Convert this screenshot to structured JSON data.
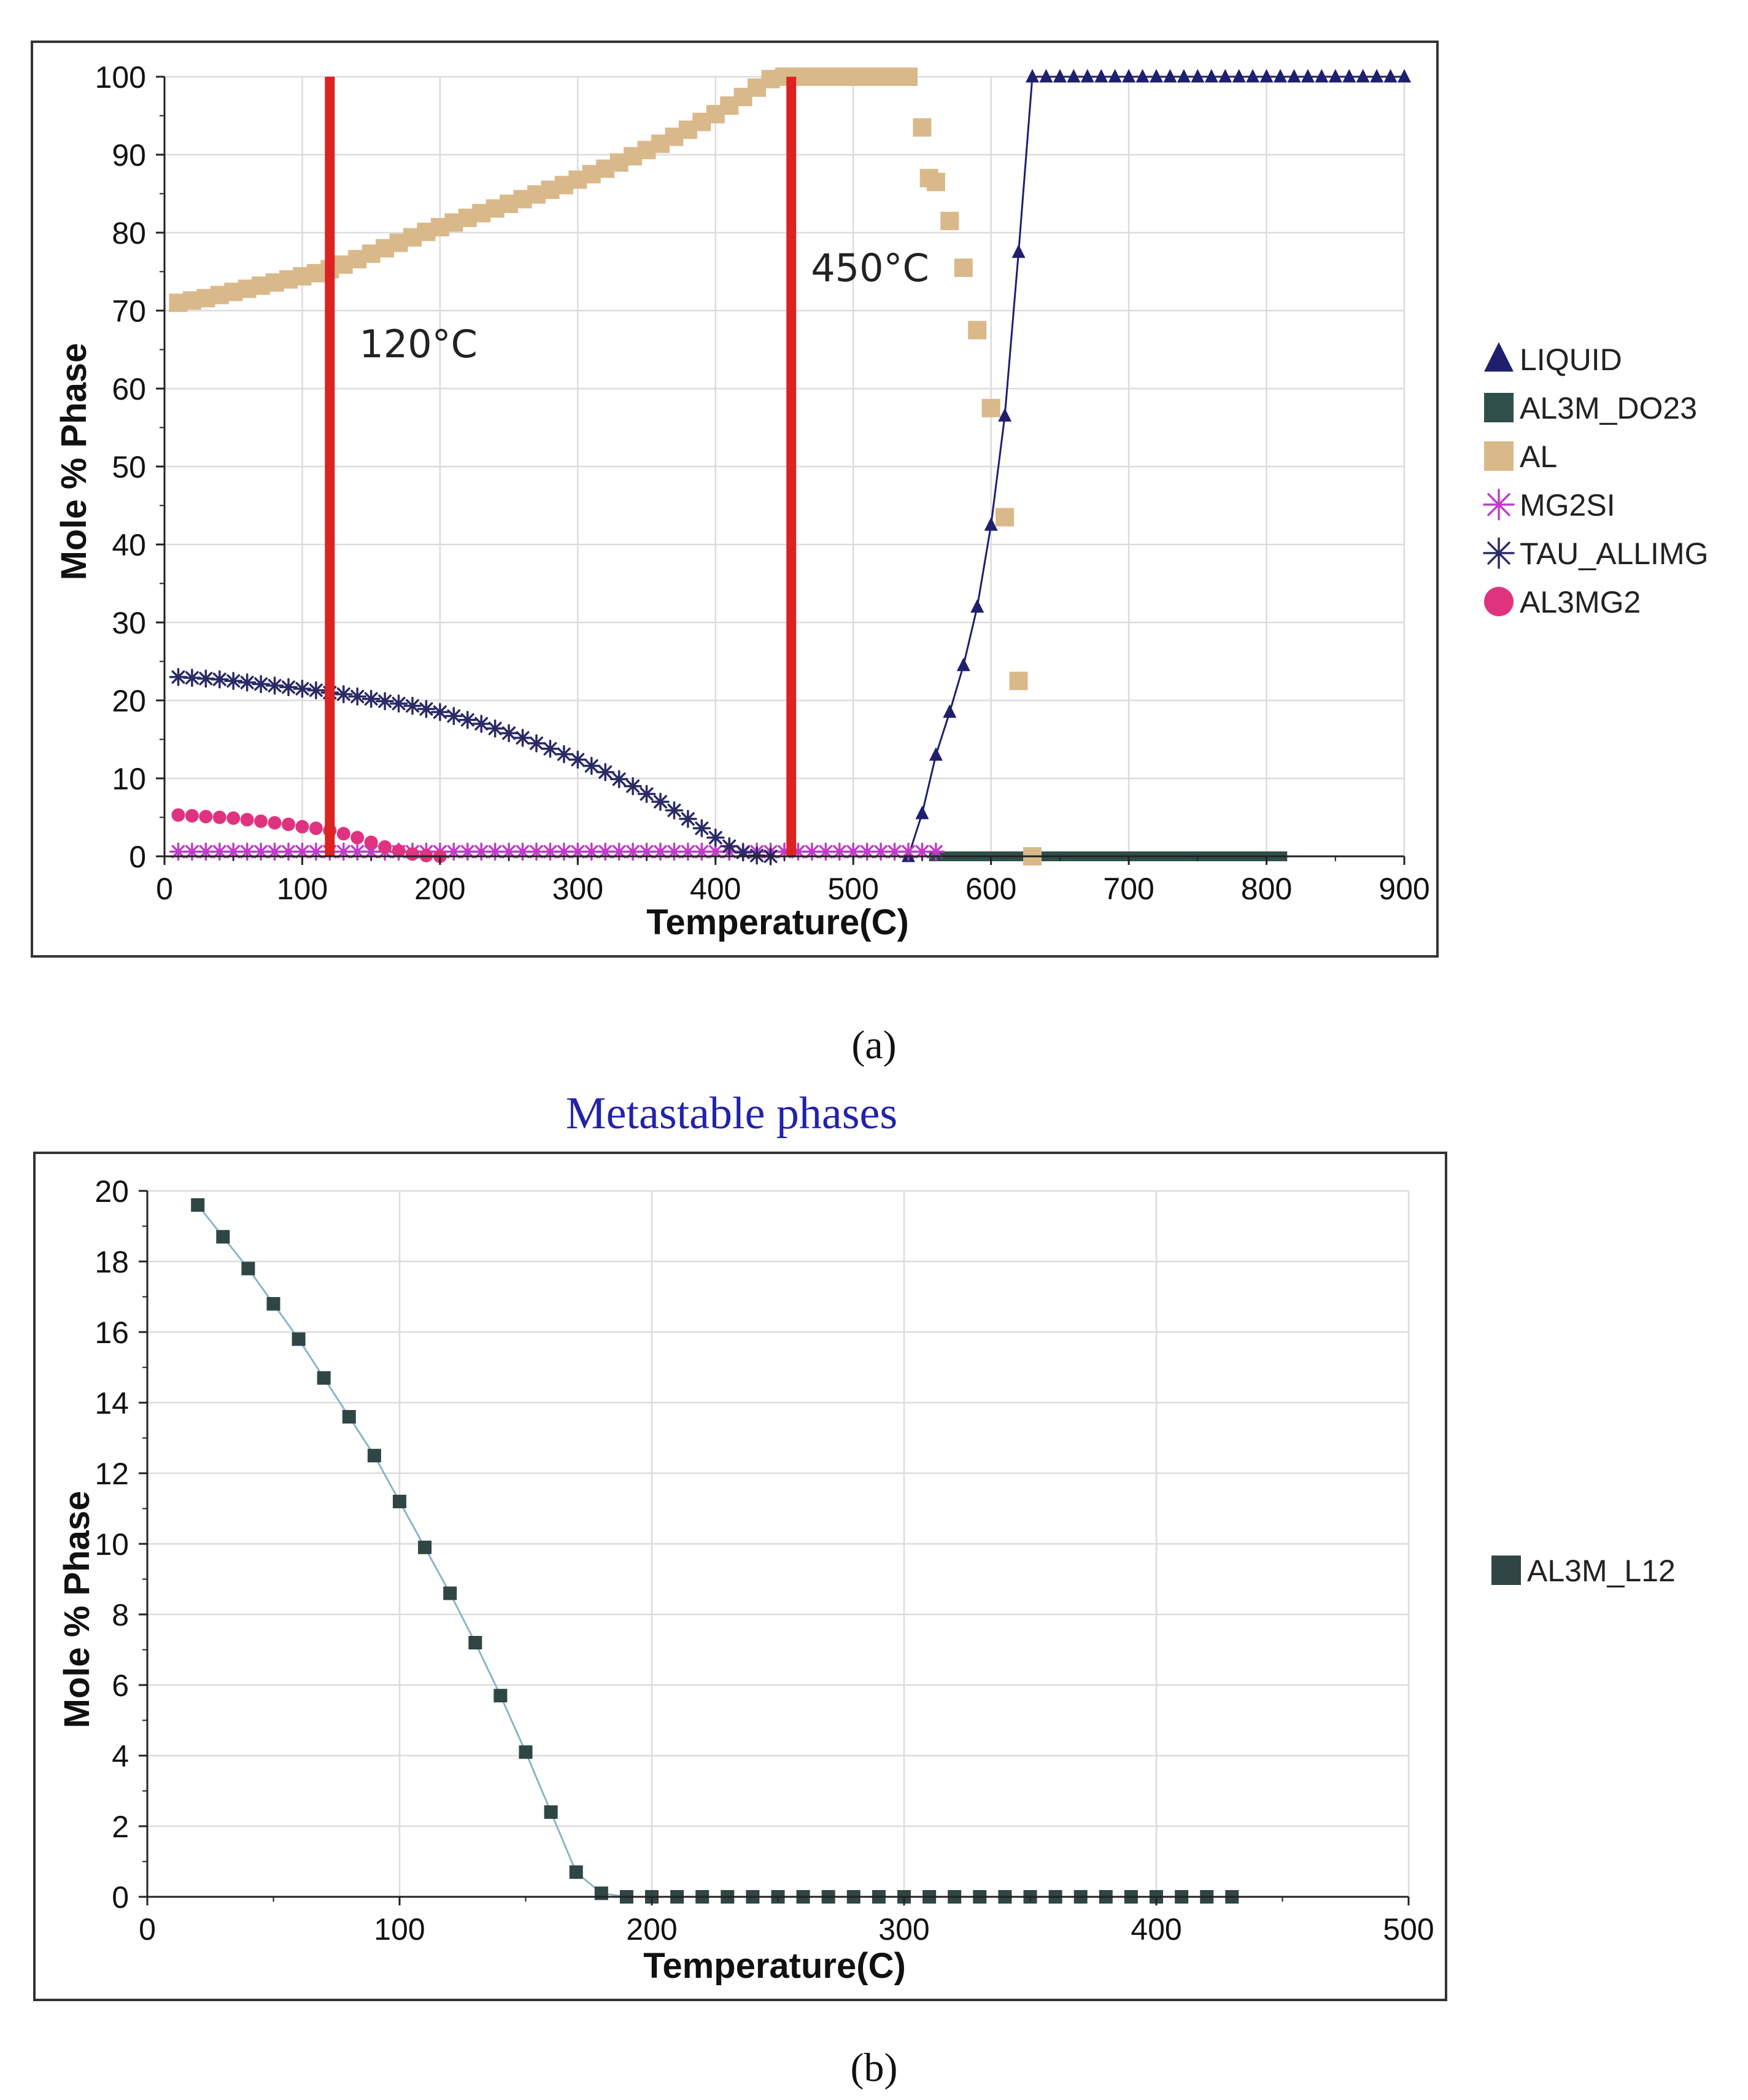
{
  "colors": {
    "liquid": "#1f1f6e",
    "al3m_do23": "#2f4f4a",
    "al": "#d9b98a",
    "mg2si": "#c03cc8",
    "tau": "#2a2a66",
    "al3mg2": "#e0337f",
    "marker": "#dd2222",
    "l12": "#2f4644",
    "l12_line": "#8ab6c8",
    "title": "#2222aa",
    "grid": "#dcdcdc"
  },
  "captions": {
    "a": "(a)",
    "b": "(b)"
  },
  "chart_data": [
    {
      "type": "line",
      "title": "",
      "xlabel": "Temperature(C)",
      "ylabel": "Mole % Phase",
      "xlim": [
        0,
        900
      ],
      "ylim": [
        0,
        100
      ],
      "xticks": [
        0,
        100,
        200,
        300,
        400,
        500,
        600,
        700,
        800,
        900
      ],
      "yticks": [
        0,
        10,
        20,
        30,
        40,
        50,
        60,
        70,
        80,
        90,
        100
      ],
      "grid": true,
      "legend_position": "right",
      "annotations": [
        {
          "label": "120°C",
          "x": 120
        },
        {
          "label": "450°C",
          "x": 455
        }
      ],
      "series": [
        {
          "name": "LIQUID",
          "marker": "triangle",
          "color_key": "liquid",
          "line": true,
          "x": [
            540,
            550,
            560,
            570,
            580,
            590,
            600,
            610,
            620,
            630,
            640,
            650,
            660,
            670,
            680,
            690,
            700,
            710,
            720,
            730,
            740,
            750,
            760,
            770,
            780,
            790,
            800,
            810,
            820,
            830,
            840,
            850,
            860,
            870,
            880,
            890,
            900
          ],
          "y": [
            0,
            5.5,
            13,
            18.5,
            24.5,
            32,
            42.5,
            56.5,
            77.5,
            100,
            100,
            100,
            100,
            100,
            100,
            100,
            100,
            100,
            100,
            100,
            100,
            100,
            100,
            100,
            100,
            100,
            100,
            100,
            100,
            100,
            100,
            100,
            100,
            100,
            100,
            100,
            100
          ]
        },
        {
          "name": "AL3M_DO23",
          "marker": "square",
          "color_key": "al3m_do23",
          "line": true,
          "x": [
            555,
            815
          ],
          "y": [
            0,
            0
          ]
        },
        {
          "name": "AL",
          "marker": "square",
          "color_key": "al",
          "line": false,
          "x": [
            10,
            20,
            30,
            40,
            50,
            60,
            70,
            80,
            90,
            100,
            110,
            120,
            130,
            140,
            150,
            160,
            170,
            180,
            190,
            200,
            210,
            220,
            230,
            240,
            250,
            260,
            270,
            280,
            290,
            300,
            310,
            320,
            330,
            340,
            350,
            360,
            370,
            380,
            390,
            400,
            410,
            420,
            430,
            440,
            450,
            460,
            470,
            480,
            490,
            500,
            510,
            520,
            530,
            540,
            550,
            555,
            560,
            570,
            580,
            590,
            600,
            610,
            620,
            630
          ],
          "y": [
            71,
            71.3,
            71.6,
            72,
            72.4,
            72.8,
            73.2,
            73.6,
            74,
            74.4,
            74.8,
            75.3,
            75.9,
            76.6,
            77.3,
            78,
            78.7,
            79.4,
            80.1,
            80.7,
            81.3,
            81.9,
            82.5,
            83.1,
            83.7,
            84.3,
            84.9,
            85.5,
            86.1,
            86.8,
            87.5,
            88.2,
            89,
            89.8,
            90.6,
            91.4,
            92.3,
            93.2,
            94.2,
            95.2,
            96.3,
            97.4,
            98.6,
            99.7,
            100,
            100,
            100,
            100,
            100,
            100,
            100,
            100,
            100,
            100,
            93.5,
            87,
            86.5,
            81.5,
            75.5,
            67.5,
            57.5,
            43.5,
            22.5,
            0
          ]
        },
        {
          "name": "MG2SI",
          "marker": "asterisk",
          "color_key": "mg2si",
          "line": false,
          "x": [
            10,
            20,
            30,
            40,
            50,
            60,
            70,
            80,
            90,
            100,
            110,
            120,
            130,
            140,
            150,
            160,
            170,
            180,
            190,
            200,
            210,
            220,
            230,
            240,
            250,
            260,
            270,
            280,
            290,
            300,
            310,
            320,
            330,
            340,
            350,
            360,
            370,
            380,
            390,
            400,
            410,
            420,
            430,
            440,
            450,
            460,
            470,
            480,
            490,
            500,
            510,
            520,
            530,
            540,
            550,
            560
          ],
          "y": [
            0.6,
            0.6,
            0.6,
            0.6,
            0.6,
            0.6,
            0.6,
            0.6,
            0.6,
            0.6,
            0.6,
            0.6,
            0.6,
            0.6,
            0.6,
            0.6,
            0.6,
            0.6,
            0.6,
            0.6,
            0.6,
            0.6,
            0.6,
            0.6,
            0.6,
            0.6,
            0.6,
            0.6,
            0.6,
            0.6,
            0.6,
            0.6,
            0.6,
            0.6,
            0.6,
            0.6,
            0.6,
            0.6,
            0.6,
            0.6,
            0.6,
            0.6,
            0.6,
            0.6,
            0.6,
            0.6,
            0.6,
            0.6,
            0.6,
            0.6,
            0.6,
            0.6,
            0.6,
            0.6,
            0.6,
            0.6
          ]
        },
        {
          "name": "TAU_ALLIMG",
          "marker": "asterisk",
          "color_key": "tau",
          "line": false,
          "x": [
            10,
            20,
            30,
            40,
            50,
            60,
            70,
            80,
            90,
            100,
            110,
            120,
            130,
            140,
            150,
            160,
            170,
            180,
            190,
            200,
            210,
            220,
            230,
            240,
            250,
            260,
            270,
            280,
            290,
            300,
            310,
            320,
            330,
            340,
            350,
            360,
            370,
            380,
            390,
            400,
            410,
            420,
            430,
            440
          ],
          "y": [
            23,
            22.9,
            22.8,
            22.7,
            22.5,
            22.3,
            22.1,
            21.9,
            21.7,
            21.5,
            21.3,
            21,
            20.8,
            20.5,
            20.2,
            19.9,
            19.6,
            19.3,
            18.9,
            18.5,
            18,
            17.5,
            17,
            16.4,
            15.8,
            15.2,
            14.5,
            13.8,
            13.1,
            12.4,
            11.6,
            10.8,
            9.9,
            9,
            8,
            7,
            5.9,
            4.8,
            3.6,
            2.4,
            1.3,
            0.5,
            0.1,
            0
          ]
        },
        {
          "name": "AL3MG2",
          "marker": "circle",
          "color_key": "al3mg2",
          "line": false,
          "x": [
            10,
            20,
            30,
            40,
            50,
            60,
            70,
            80,
            90,
            100,
            110,
            120,
            130,
            140,
            150,
            160,
            170,
            180,
            190,
            200
          ],
          "y": [
            5.3,
            5.2,
            5.1,
            5,
            4.9,
            4.7,
            4.5,
            4.3,
            4.1,
            3.8,
            3.6,
            3.3,
            2.9,
            2.4,
            1.8,
            1.2,
            0.7,
            0.3,
            0.1,
            0
          ]
        }
      ]
    },
    {
      "type": "line",
      "title": "Metastable phases",
      "xlabel": "Temperature(C)",
      "ylabel": "Mole % Phase",
      "xlim": [
        0,
        500
      ],
      "ylim": [
        0,
        20
      ],
      "xticks": [
        0,
        100,
        200,
        300,
        400,
        500
      ],
      "yticks": [
        0,
        2,
        4,
        6,
        8,
        10,
        12,
        14,
        16,
        18,
        20
      ],
      "grid": true,
      "legend_position": "right",
      "series": [
        {
          "name": "AL3M_L12",
          "marker": "square",
          "color_key": "l12",
          "line": true,
          "x": [
            20,
            30,
            40,
            50,
            60,
            70,
            80,
            90,
            100,
            110,
            120,
            130,
            140,
            150,
            160,
            170,
            180,
            190,
            200,
            210,
            220,
            230,
            240,
            250,
            260,
            270,
            280,
            290,
            300,
            310,
            320,
            330,
            340,
            350,
            360,
            370,
            380,
            390,
            400,
            410,
            420,
            430
          ],
          "y": [
            19.6,
            18.7,
            17.8,
            16.8,
            15.8,
            14.7,
            13.6,
            12.5,
            11.2,
            9.9,
            8.6,
            7.2,
            5.7,
            4.1,
            2.4,
            0.7,
            0.1,
            0,
            0,
            0,
            0,
            0,
            0,
            0,
            0,
            0,
            0,
            0,
            0,
            0,
            0,
            0,
            0,
            0,
            0,
            0,
            0,
            0,
            0,
            0,
            0,
            0
          ]
        }
      ]
    }
  ]
}
